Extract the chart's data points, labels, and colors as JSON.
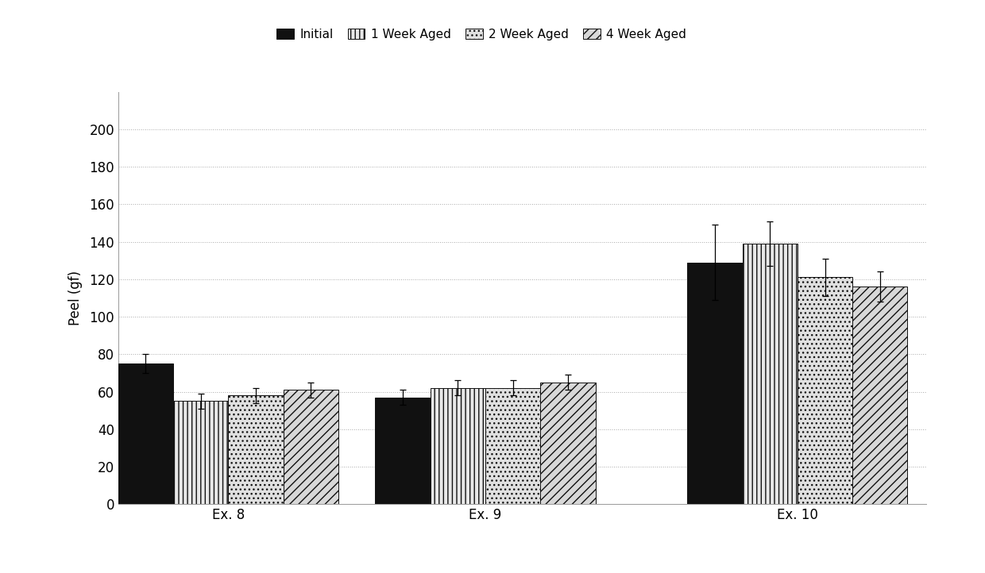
{
  "categories": [
    "Ex. 8",
    "Ex. 9",
    "Ex. 10"
  ],
  "series": {
    "Initial": [
      75,
      57,
      129
    ],
    "1 Week Aged": [
      55,
      62,
      139
    ],
    "2 Week Aged": [
      58,
      62,
      121
    ],
    "4 Week Aged": [
      61,
      65,
      116
    ]
  },
  "errors": {
    "Initial": [
      5,
      4,
      20
    ],
    "1 Week Aged": [
      4,
      4,
      12
    ],
    "2 Week Aged": [
      4,
      4,
      10
    ],
    "4 Week Aged": [
      4,
      4,
      8
    ]
  },
  "ylabel": "Peel (gf)",
  "ylim": [
    0,
    220
  ],
  "yticks": [
    0,
    20,
    40,
    60,
    80,
    100,
    120,
    140,
    160,
    180,
    200
  ],
  "legend_labels": [
    "Initial",
    "1 Week Aged",
    "2 Week Aged",
    "4 Week Aged"
  ],
  "background_color": "#ffffff",
  "plot_bg_color": "#ffffff",
  "bar_width": 0.15,
  "hatches": [
    "",
    "|||",
    "...",
    "///"
  ],
  "bar_facecolors": [
    "#111111",
    "#e8e8e8",
    "#e0e0e0",
    "#d8d8d8"
  ],
  "bar_edgecolors": [
    "#111111",
    "#111111",
    "#111111",
    "#111111"
  ]
}
